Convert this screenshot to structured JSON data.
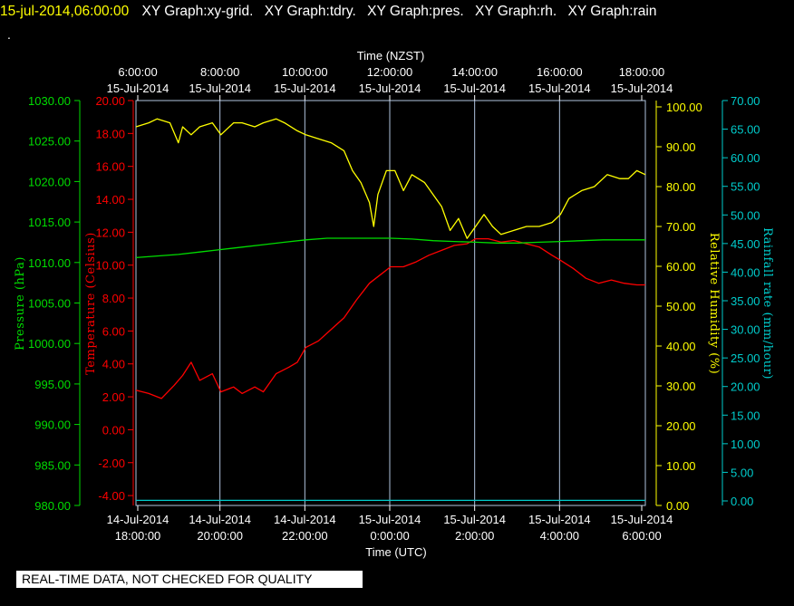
{
  "header": {
    "timestamp": "15-jul-2014,06:00:00",
    "graphs": [
      "XY Graph:xy-grid.",
      "XY Graph:tdry.",
      "XY Graph:pres.",
      "XY Graph:rh.",
      "XY Graph:rain"
    ],
    "dot": "."
  },
  "footer": {
    "quality_note": "REAL-TIME DATA, NOT CHECKED FOR QUALITY"
  },
  "colors": {
    "pressure": "#00dd00",
    "temperature": "#ff0000",
    "humidity": "#ffff00",
    "rainfall": "#00cccc",
    "grid": "#b0c4de",
    "text": "#ffffff"
  },
  "chart_data": {
    "type": "line",
    "top_axis": {
      "title": "Time (NZST)",
      "ticks": [
        [
          "6:00:00",
          "15-Jul-2014"
        ],
        [
          "8:00:00",
          "15-Jul-2014"
        ],
        [
          "10:00:00",
          "15-Jul-2014"
        ],
        [
          "12:00:00",
          "15-Jul-2014"
        ],
        [
          "14:00:00",
          "15-Jul-2014"
        ],
        [
          "16:00:00",
          "15-Jul-2014"
        ],
        [
          "18:00:00",
          "15-Jul-2014"
        ]
      ]
    },
    "bottom_axis": {
      "title": "Time (UTC)",
      "ticks": [
        [
          "14-Jul-2014",
          "18:00:00"
        ],
        [
          "14-Jul-2014",
          "20:00:00"
        ],
        [
          "14-Jul-2014",
          "22:00:00"
        ],
        [
          "15-Jul-2014",
          "0:00:00"
        ],
        [
          "15-Jul-2014",
          "2:00:00"
        ],
        [
          "15-Jul-2014",
          "4:00:00"
        ],
        [
          "15-Jul-2014",
          "6:00:00"
        ]
      ]
    },
    "x_range_utc_hours": [
      18,
      30
    ],
    "grid": true,
    "axes": {
      "pressure": {
        "label": "Pressure (hPa)",
        "range": [
          980,
          1030
        ],
        "ticks": [
          "1030.00",
          "1025.00",
          "1020.00",
          "1015.00",
          "1010.00",
          "1005.00",
          "1000.00",
          "995.00",
          "990.00",
          "985.00",
          "980.00"
        ]
      },
      "temperature": {
        "label": "Temperature (Celsius)",
        "range": [
          -4.6,
          20
        ],
        "ticks": [
          "20.00",
          "18.00",
          "16.00",
          "14.00",
          "12.00",
          "10.00",
          "8.00",
          "6.00",
          "4.00",
          "2.00",
          "0.00",
          "-2.00",
          "-4.00"
        ]
      },
      "humidity": {
        "label": "Relative Humidity (%)",
        "range": [
          0,
          100
        ],
        "ticks": [
          "100.00",
          "90.00",
          "80.00",
          "70.00",
          "60.00",
          "50.00",
          "40.00",
          "30.00",
          "20.00",
          "10.00",
          "0.00"
        ]
      },
      "rainfall": {
        "label": "Rainfall rate (mm/hour)",
        "range": [
          0,
          70
        ],
        "ticks": [
          "70.00",
          "65.00",
          "60.00",
          "55.00",
          "50.00",
          "45.00",
          "40.00",
          "35.00",
          "30.00",
          "25.00",
          "20.00",
          "15.00",
          "10.00",
          "5.00",
          "0.00"
        ]
      }
    },
    "series": [
      {
        "name": "tdry",
        "axis": "temperature",
        "x": [
          18.0,
          18.3,
          18.6,
          18.9,
          19.1,
          19.3,
          19.5,
          19.8,
          20.0,
          20.3,
          20.5,
          20.8,
          21.0,
          21.3,
          21.6,
          21.8,
          22.0,
          22.3,
          22.6,
          22.9,
          23.2,
          23.5,
          23.8,
          24.0,
          24.3,
          24.6,
          24.9,
          25.2,
          25.5,
          25.8,
          26.0,
          26.3,
          26.6,
          26.9,
          27.2,
          27.5,
          27.8,
          28.0,
          28.3,
          28.6,
          28.9,
          29.2,
          29.5,
          29.8,
          30.0
        ],
        "y": [
          2.4,
          2.2,
          1.9,
          2.7,
          3.3,
          4.1,
          3.0,
          3.4,
          2.3,
          2.6,
          2.2,
          2.6,
          2.3,
          3.4,
          3.8,
          4.1,
          5.0,
          5.4,
          6.1,
          6.8,
          7.9,
          8.9,
          9.5,
          9.9,
          9.9,
          10.2,
          10.6,
          10.9,
          11.2,
          11.3,
          11.6,
          11.6,
          11.4,
          11.5,
          11.3,
          11.1,
          10.6,
          10.3,
          9.8,
          9.2,
          8.9,
          9.1,
          8.9,
          8.8,
          8.8
        ]
      },
      {
        "name": "pres",
        "axis": "pressure",
        "x": [
          18.0,
          18.5,
          19.0,
          19.5,
          20.0,
          20.5,
          21.0,
          21.5,
          22.0,
          22.5,
          23.0,
          23.5,
          24.0,
          24.5,
          25.0,
          25.5,
          26.0,
          26.5,
          27.0,
          27.5,
          28.0,
          28.5,
          29.0,
          29.5,
          30.0
        ],
        "y": [
          1010.6,
          1010.8,
          1011.0,
          1011.3,
          1011.6,
          1011.9,
          1012.2,
          1012.5,
          1012.8,
          1013.0,
          1013.0,
          1013.0,
          1013.0,
          1012.9,
          1012.7,
          1012.6,
          1012.5,
          1012.4,
          1012.4,
          1012.5,
          1012.6,
          1012.7,
          1012.8,
          1012.8,
          1012.8
        ]
      },
      {
        "name": "rh",
        "axis": "humidity",
        "x": [
          18.0,
          18.3,
          18.5,
          18.8,
          19.0,
          19.1,
          19.3,
          19.5,
          19.8,
          20.0,
          20.3,
          20.5,
          20.8,
          21.0,
          21.3,
          21.5,
          21.8,
          22.0,
          22.3,
          22.6,
          22.9,
          23.1,
          23.3,
          23.5,
          23.6,
          23.7,
          23.9,
          24.1,
          24.3,
          24.5,
          24.8,
          25.0,
          25.2,
          25.4,
          25.6,
          25.8,
          26.0,
          26.2,
          26.4,
          26.6,
          26.9,
          27.2,
          27.5,
          27.8,
          28.0,
          28.2,
          28.5,
          28.8,
          29.1,
          29.4,
          29.6,
          29.8,
          30.0
        ],
        "y": [
          95,
          96,
          97,
          96,
          91,
          95,
          93,
          95,
          96,
          93,
          96,
          96,
          95,
          96,
          97,
          96,
          94,
          93,
          92,
          91,
          89,
          84,
          81,
          76,
          70,
          78,
          84,
          84,
          79,
          83,
          81,
          78,
          75,
          69,
          72,
          67,
          70,
          73,
          70,
          68,
          69,
          70,
          70,
          71,
          73,
          77,
          79,
          80,
          83,
          82,
          82,
          84,
          83
        ]
      },
      {
        "name": "rain",
        "axis": "rainfall",
        "x": [
          18.0,
          30.0
        ],
        "y": [
          0.1,
          0.1
        ]
      }
    ]
  }
}
